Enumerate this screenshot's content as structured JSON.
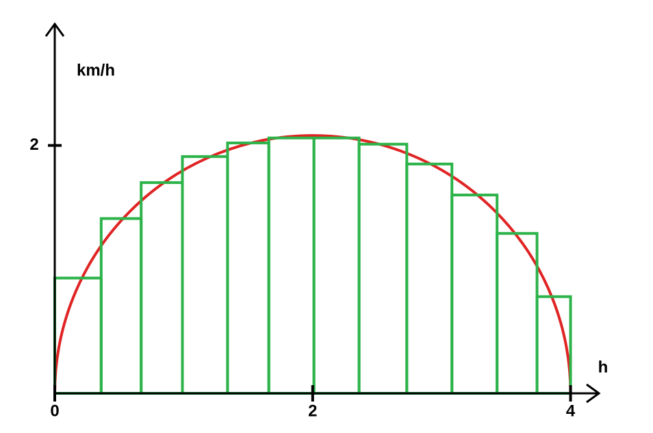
{
  "chart_data": {
    "type": "histogram",
    "x_label": "h",
    "y_label": "km/h",
    "bins": [
      0,
      0.36,
      0.67,
      0.99,
      1.34,
      1.66,
      2.01,
      2.36,
      2.73,
      3.08,
      3.43,
      3.74,
      4
    ],
    "values": [
      0.93,
      1.41,
      1.7,
      1.91,
      2.02,
      2.06,
      2.06,
      2.01,
      1.85,
      1.6,
      1.29,
      0.78
    ],
    "color": "#2db34a",
    "curve": {
      "color": "#e02424",
      "peak": 2.08
    },
    "xlim": [
      0,
      4.22
    ],
    "ylim": [
      0,
      2.98
    ],
    "xticks": [
      0,
      2,
      4
    ],
    "yticks": [
      2
    ]
  }
}
